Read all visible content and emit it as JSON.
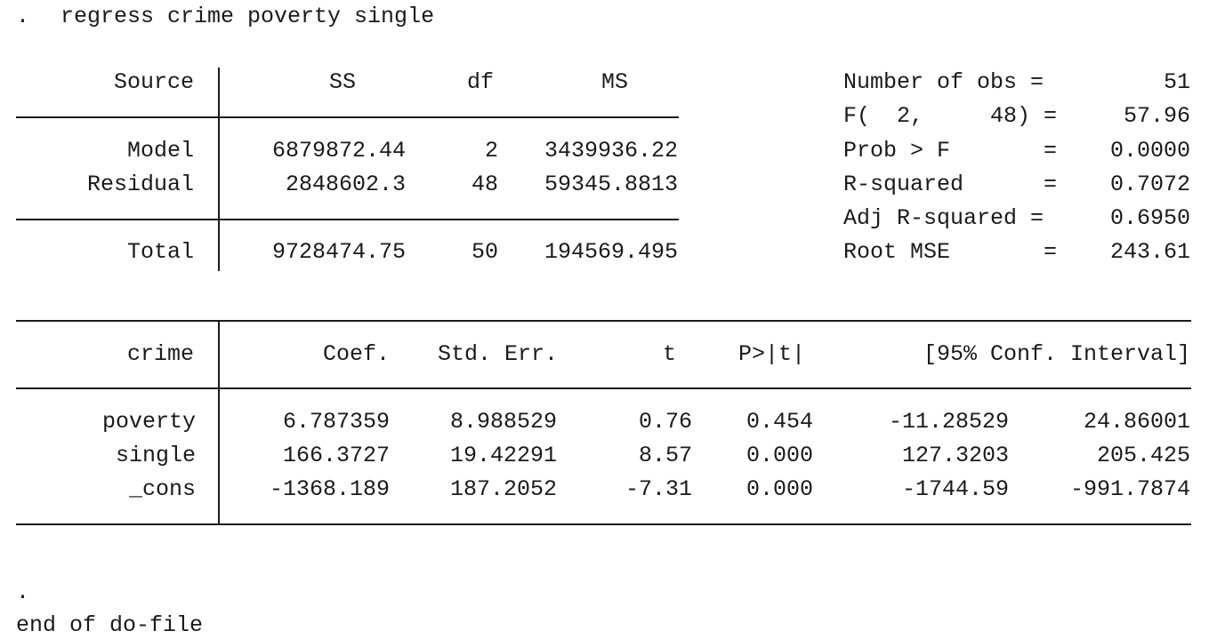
{
  "command": {
    "prompt": ".",
    "text": "regress crime poverty single"
  },
  "anova": {
    "headers": {
      "source": "Source",
      "ss": "SS",
      "df": "df",
      "ms": "MS"
    },
    "rows": [
      {
        "source": "Model",
        "ss": "6879872.44",
        "df": "2",
        "ms": "3439936.22"
      },
      {
        "source": "Residual",
        "ss": "2848602.3",
        "df": "48",
        "ms": "59345.8813"
      }
    ],
    "total": {
      "source": "Total",
      "ss": "9728474.75",
      "df": "50",
      "ms": "194569.495"
    }
  },
  "stats": [
    {
      "label": "Number of obs =",
      "value": "51"
    },
    {
      "label": "F(  2,     48) =",
      "value": "57.96"
    },
    {
      "label": "Prob > F       =",
      "value": "0.0000"
    },
    {
      "label": "R-squared      =",
      "value": "0.7072"
    },
    {
      "label": "Adj R-squared =",
      "value": "0.6950"
    },
    {
      "label": "Root MSE       =",
      "value": "243.61"
    }
  ],
  "coef": {
    "headers": {
      "var": "crime",
      "coef": "Coef.",
      "se": "Std. Err.",
      "t": "t",
      "p": "P>|t|",
      "ci": "[95% Conf. Interval]"
    },
    "rows": [
      {
        "var": "poverty",
        "coef": "6.787359",
        "se": "8.988529",
        "t": "0.76",
        "p": "0.454",
        "lo": "-11.28529",
        "hi": "24.86001"
      },
      {
        "var": "single",
        "coef": "166.3727",
        "se": "19.42291",
        "t": "8.57",
        "p": "0.000",
        "lo": "127.3203",
        "hi": "205.425"
      },
      {
        "var": "_cons",
        "coef": "-1368.189",
        "se": "187.2052",
        "t": "-7.31",
        "p": "0.000",
        "lo": "-1744.59",
        "hi": "-991.7874"
      }
    ]
  },
  "footer": {
    "dot": ".",
    "end": "end of do-file"
  }
}
